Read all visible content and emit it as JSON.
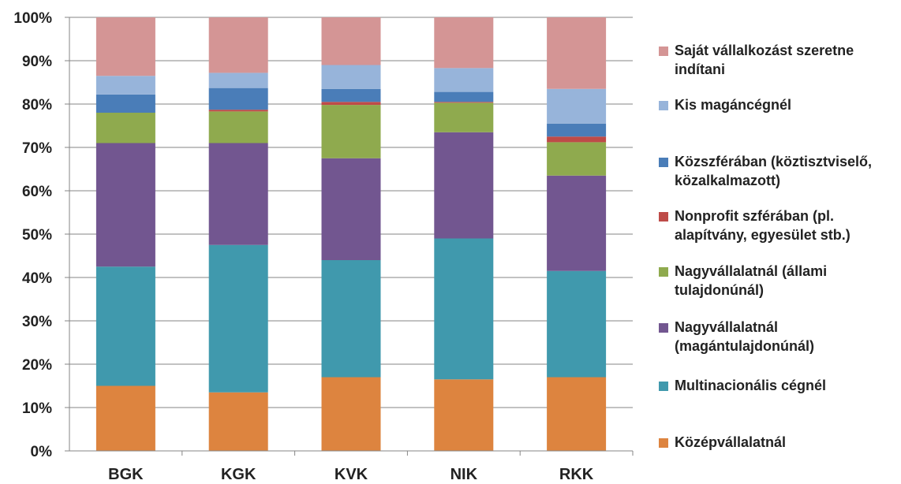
{
  "chart_data": {
    "type": "bar",
    "stacked": "percent",
    "categories": [
      "BGK",
      "KGK",
      "KVK",
      "NIK",
      "RKK"
    ],
    "y_ticks": [
      "0%",
      "10%",
      "20%",
      "30%",
      "40%",
      "50%",
      "60%",
      "70%",
      "80%",
      "90%",
      "100%"
    ],
    "ylim": [
      0,
      100
    ],
    "grid": true,
    "legend_position": "right",
    "series": [
      {
        "name": "Középvállalatnál",
        "color": "#DD843F",
        "values": [
          15,
          13.5,
          17,
          16.5,
          17
        ]
      },
      {
        "name": "Multinacionális cégnél",
        "color": "#4099AD",
        "values": [
          27.5,
          34,
          27,
          32.5,
          24.5
        ]
      },
      {
        "name": "Nagyvállalatnál (magántulajdonúnál)",
        "color": "#725690",
        "values": [
          28.5,
          23.5,
          23.5,
          24.5,
          22
        ]
      },
      {
        "name": "Nagyvállalatnál (állami tulajdonúnál)",
        "color": "#8FAA4E",
        "values": [
          7,
          7.3,
          12.3,
          6.8,
          7.7
        ]
      },
      {
        "name": "Nonprofit szférában (pl. alapítvány, egyesület stb.)",
        "color": "#BE4B48",
        "values": [
          0,
          0.4,
          0.7,
          0.2,
          1.3
        ]
      },
      {
        "name": "Közszférában (köztisztviselő, közalkalmazott)",
        "color": "#4A7DB8",
        "values": [
          4.2,
          5,
          3,
          2.3,
          3
        ]
      },
      {
        "name": "Kis magáncégnél",
        "color": "#97B4DA",
        "values": [
          4.3,
          3.5,
          5.5,
          5.5,
          8
        ]
      },
      {
        "name": "Saját vállalkozást szeretne indítani",
        "color": "#D49595",
        "values": [
          13.5,
          12.8,
          11,
          11.7,
          16.5
        ]
      }
    ]
  }
}
